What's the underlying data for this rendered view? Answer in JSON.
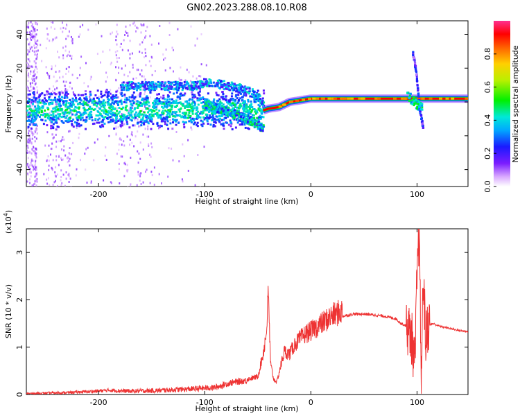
{
  "title": "GN02.2023.288.08.10.R08",
  "chart_data": [
    {
      "type": "heatmap",
      "xlabel": "Height of straight line (km)",
      "ylabel": "Frequency (Hz)",
      "xlim": [
        -268,
        148
      ],
      "ylim": [
        -50,
        48
      ],
      "xticks": [
        -200,
        -100,
        0,
        100
      ],
      "yticks": [
        -40,
        -20,
        0,
        20,
        40
      ],
      "colorbar": {
        "label": "Normalized spectral amplitude",
        "ticks": [
          "0.0",
          "0.2",
          "0.4",
          "0.6",
          "0.8"
        ],
        "tick_values": [
          0.0,
          0.2,
          0.4,
          0.6,
          0.8
        ],
        "range": [
          0,
          1
        ]
      },
      "features": [
        {
          "name": "main_band",
          "x": [
            -268,
            -45
          ],
          "y": [
            -4,
            -4
          ],
          "amplitude": 0.4
        },
        {
          "name": "upper_trace",
          "x": [
            -180,
            -110,
            -100,
            -75,
            -55,
            -45
          ],
          "y": [
            10,
            10,
            12,
            10,
            6,
            0
          ]
        },
        {
          "name": "lower_trace",
          "x": [
            -100,
            -75,
            -60,
            -45
          ],
          "y": [
            -1,
            -6,
            -10,
            -15
          ]
        },
        {
          "name": "steady_line",
          "x": [
            -45,
            -40,
            -30,
            -20,
            0,
            100,
            148
          ],
          "y": [
            -5,
            -4,
            -3,
            0,
            2,
            2,
            2
          ],
          "amplitude": 0.9
        },
        {
          "name": "spike",
          "x": [
            95,
            98,
            102,
            105
          ],
          "y": [
            30,
            20,
            -5,
            -15
          ]
        }
      ]
    },
    {
      "type": "line",
      "xlabel": "Height of straight line (km)",
      "ylabel": "SNR (10 * v/v)",
      "multiplier": "(x10",
      "multiplier_exp": "4",
      "multiplier_close": ")",
      "xlim": [
        -268,
        148
      ],
      "ylim": [
        0,
        3.5
      ],
      "xticks": [
        -200,
        -100,
        0,
        100
      ],
      "yticks": [
        0,
        1,
        2,
        3
      ],
      "color": "#ee3333",
      "series": [
        {
          "x": [
            -268,
            -250,
            -230,
            -210,
            -190,
            -170,
            -150,
            -130,
            -110,
            -90,
            -75,
            -60,
            -50,
            -45,
            -42,
            -40,
            -38,
            -35,
            -32,
            -28,
            -25,
            -20,
            -15,
            -10,
            -5,
            0,
            10,
            20,
            30,
            40,
            50,
            60,
            70,
            80,
            85,
            90,
            95,
            98,
            100,
            102,
            104,
            106,
            108,
            110,
            115,
            120,
            130,
            140,
            148
          ],
          "y": [
            0.02,
            0.03,
            0.04,
            0.06,
            0.09,
            0.07,
            0.08,
            0.1,
            0.12,
            0.15,
            0.25,
            0.3,
            0.35,
            0.8,
            1.2,
            2.0,
            0.6,
            0.3,
            0.25,
            0.6,
            0.85,
            0.8,
            1.0,
            1.1,
            1.2,
            1.25,
            1.4,
            1.55,
            1.65,
            1.7,
            1.7,
            1.68,
            1.65,
            1.6,
            1.5,
            1.45,
            1.2,
            0.6,
            2.5,
            3.4,
            0.3,
            2.6,
            1.1,
            1.45,
            1.5,
            1.45,
            1.4,
            1.35,
            1.33
          ]
        }
      ]
    }
  ]
}
